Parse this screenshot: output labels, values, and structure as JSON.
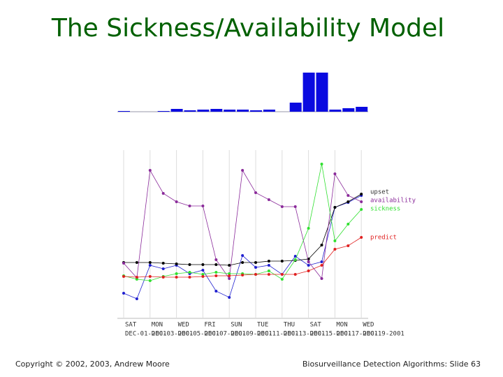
{
  "title": "The Sickness/Availability Model",
  "footer_left": "Copyright © 2002, 2003, Andrew Moore",
  "footer_right": "Biosurveillance Detection Algorithms: Slide 63",
  "chart_data": [
    {
      "type": "bar",
      "values": [
        1,
        0,
        0,
        1,
        4,
        2,
        3,
        4,
        3,
        3,
        2,
        3,
        0,
        13,
        56,
        56,
        3,
        5,
        7
      ],
      "color": "#0a0ae0",
      "ylim": [
        0,
        56
      ]
    },
    {
      "type": "line",
      "categories": [
        "SAT",
        null,
        "MON",
        null,
        "WED",
        null,
        "FRI",
        null,
        "SUN",
        null,
        "TUE",
        null,
        "THU",
        null,
        "SAT",
        null,
        "MON",
        null,
        "WED"
      ],
      "dates": [
        "DEC-01-2001",
        null,
        "DEC-03-2001",
        null,
        "DEC-05-2001",
        null,
        "DEC-07-2001",
        null,
        "DEC-09-2001",
        null,
        "DEC-11-2001",
        null,
        "DEC-13-2001",
        null,
        "DEC-15-2001",
        null,
        "DEC-17-2001",
        null,
        "DEC-19-2001"
      ],
      "ylim": [
        0,
        250
      ],
      "grid": true,
      "series": [
        {
          "name": null,
          "color": "#2020d0",
          "values": [
            40,
            32,
            80,
            75,
            80,
            68,
            73,
            43,
            34,
            94,
            77,
            80,
            67,
            93,
            80,
            85,
            163,
            170,
            180
          ]
        },
        {
          "name": "upset",
          "color": "#000000",
          "values": [
            84,
            84,
            84,
            83,
            82,
            81,
            81,
            81,
            80,
            84,
            84,
            86,
            86,
            87,
            89,
            109,
            163,
            171,
            182
          ]
        },
        {
          "name": "availability",
          "color": "#8a2a9a",
          "values": [
            83,
            62,
            216,
            183,
            171,
            165,
            165,
            88,
            61,
            216,
            184,
            174,
            164,
            164,
            85,
            61,
            211,
            180,
            171
          ]
        },
        {
          "name": "sickness",
          "color": "#30e030",
          "values": [
            65,
            60,
            58,
            64,
            68,
            70,
            67,
            70,
            68,
            68,
            67,
            72,
            60,
            88,
            133,
            225,
            115,
            139,
            160
          ]
        },
        {
          "name": "predict",
          "color": "#e02020",
          "values": [
            64,
            63,
            64,
            63,
            63,
            63,
            64,
            65,
            65,
            66,
            67,
            67,
            67,
            67,
            72,
            80,
            103,
            108,
            120
          ]
        }
      ]
    }
  ]
}
